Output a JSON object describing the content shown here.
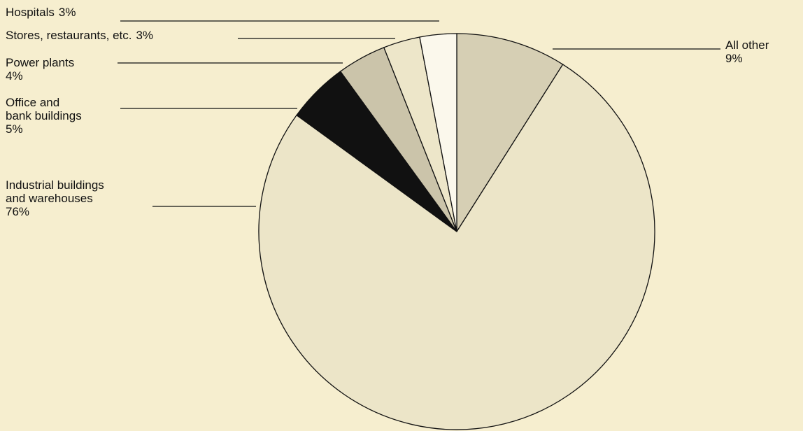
{
  "chart_data": {
    "type": "pie",
    "categories": [
      "All other",
      "Industrial buildings\nand warehouses",
      "Office and\nbank buildings",
      "Power plants",
      "Stores, restaurants, etc.",
      "Hospitals"
    ],
    "values": [
      9,
      76,
      5,
      4,
      3,
      3
    ],
    "value_labels": [
      "9%",
      "76%",
      "5%",
      "4%",
      "3%",
      "3%"
    ],
    "colors": [
      "#d6cfb4",
      "#ece5c8",
      "#111111",
      "#cbc4aa",
      "#ede6c9",
      "#fbf8ec"
    ]
  }
}
